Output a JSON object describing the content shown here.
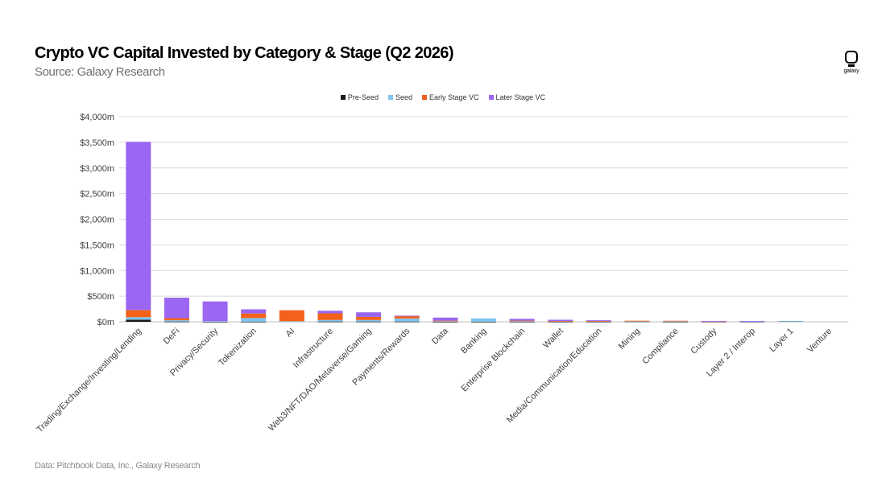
{
  "header": {
    "title": "Crypto VC Capital Invested by Category & Stage (Q2 2026)",
    "subtitle": "Source: Galaxy Research",
    "logo_text": "galaxy"
  },
  "footer": {
    "note": "Data: Pitchbook Data, Inc., Galaxy Research"
  },
  "colors": {
    "pre_seed": "#1a1a1a",
    "seed": "#7fc4f0",
    "early_stage": "#f2621a",
    "later_stage": "#9a66f2",
    "grid": "#d9d9d9",
    "axis_text": "#404040"
  },
  "chart_data": {
    "type": "bar",
    "stacked": true,
    "title": "Crypto VC Capital Invested by Category & Stage (Q2 2026)",
    "xlabel": "",
    "ylabel": "",
    "ylim": [
      0,
      4000
    ],
    "yticks": [
      0,
      500,
      1000,
      1500,
      2000,
      2500,
      3000,
      3500,
      4000
    ],
    "ytick_labels": [
      "$0m",
      "$500m",
      "$1,000m",
      "$1,500m",
      "$2,000m",
      "$2,500m",
      "$3,000m",
      "$3,500m",
      "$4,000m"
    ],
    "grid": true,
    "legend_position": "top-center",
    "categories": [
      "Trading/Exchange/Investing/Lending",
      "DeFi",
      "Privacy/Security",
      "Tokenization",
      "AI",
      "Infrastructure",
      "Web3/NFT/DAO/Metaverse/Gaming",
      "Payments/Rewards",
      "Data",
      "Banking",
      "Enterprise Blockchain",
      "Wallet",
      "Media/Communication/Education",
      "Mining",
      "Compliance",
      "Custody",
      "Layer 2 / Interop",
      "Layer 1",
      "Venture"
    ],
    "series": [
      {
        "name": "Pre-Seed",
        "color_key": "pre_seed",
        "values": [
          40,
          5,
          2,
          3,
          0,
          5,
          5,
          5,
          2,
          2,
          3,
          2,
          2,
          3,
          2,
          2,
          2,
          12,
          0
        ]
      },
      {
        "name": "Seed",
        "color_key": "seed",
        "values": [
          50,
          25,
          10,
          70,
          10,
          30,
          30,
          60,
          10,
          65,
          10,
          8,
          8,
          3,
          8,
          5,
          5,
          2,
          0
        ]
      },
      {
        "name": "Early Stage VC",
        "color_key": "early_stage",
        "values": [
          140,
          40,
          0,
          90,
          215,
          130,
          60,
          45,
          10,
          0,
          10,
          5,
          5,
          15,
          10,
          2,
          0,
          0,
          0
        ]
      },
      {
        "name": "Later Stage VC",
        "color_key": "later_stage",
        "values": [
          3280,
          400,
          385,
          80,
          0,
          50,
          90,
          10,
          60,
          0,
          35,
          25,
          15,
          0,
          0,
          6,
          8,
          0,
          0
        ]
      }
    ]
  }
}
